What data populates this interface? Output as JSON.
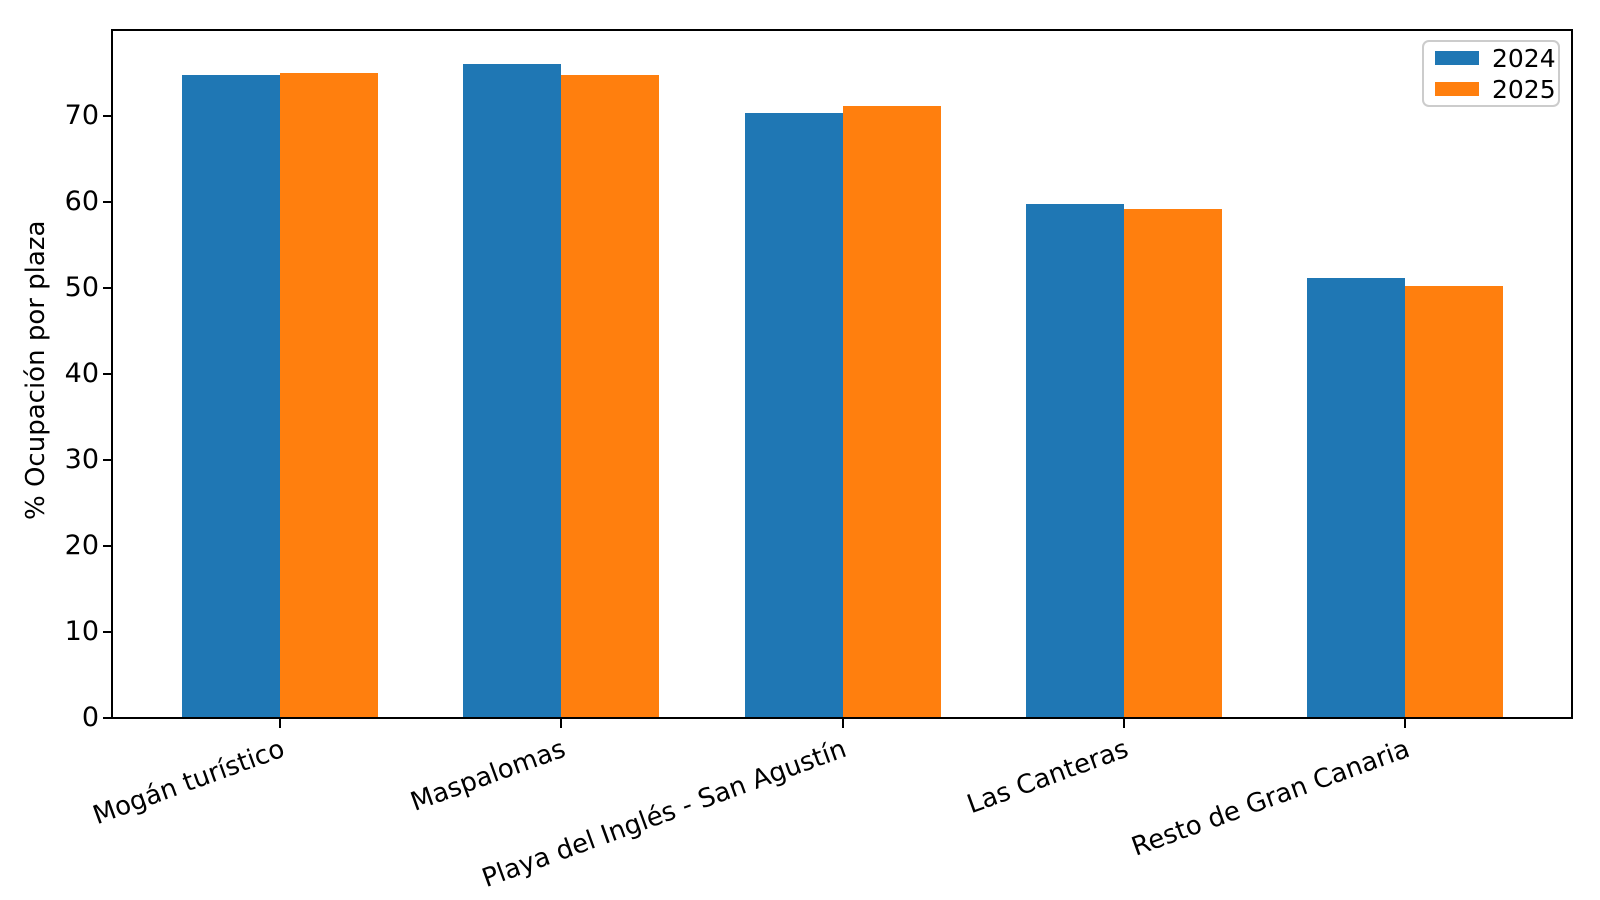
{
  "chart_data": {
    "type": "bar",
    "title": "",
    "categories": [
      "Mogán turístico",
      "Maspalomas",
      "Playa del Inglés - San Agustín",
      "Las Canteras",
      "Resto de Gran Canaria"
    ],
    "series": [
      {
        "name": "2024",
        "color": "#1f77b4",
        "values": [
          74.7,
          75.9,
          70.2,
          59.6,
          51.0
        ]
      },
      {
        "name": "2025",
        "color": "#ff7f0e",
        "values": [
          74.9,
          74.7,
          71.1,
          59.1,
          50.1
        ]
      }
    ],
    "xlabel": "",
    "ylabel": "% Ocupación por plaza",
    "ylim": [
      0,
      80
    ],
    "yticks": [
      0,
      10,
      20,
      30,
      40,
      50,
      60,
      70
    ],
    "grid": false,
    "legend_position": "upper right",
    "legend_entries": [
      "2024",
      "2025"
    ]
  }
}
